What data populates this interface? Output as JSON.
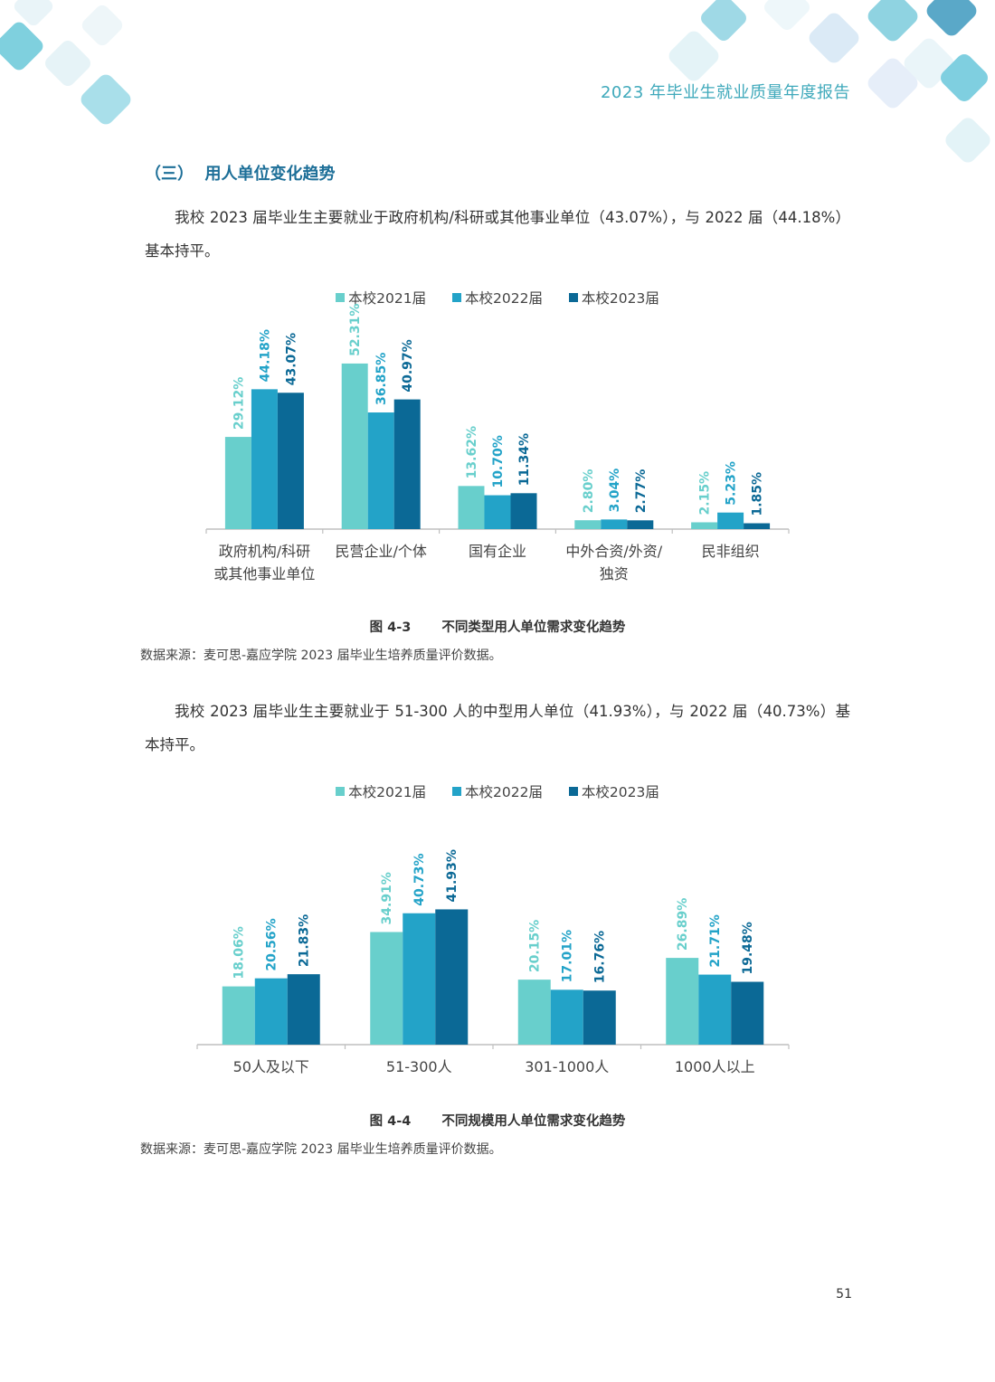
{
  "header": {
    "running_title": "2023 年毕业生就业质量年度报告"
  },
  "section": {
    "title": "（三）  用人单位变化趋势"
  },
  "paragraphs": [
    "我校 2023 届毕业生主要就业于政府机构/科研或其他事业单位（43.07%），与 2022 届（44.18%）基本持平。",
    "我校 2023 届毕业生主要就业于 51-300 人的中型用人单位（41.93%），与 2022 届（40.73%）基本持平。"
  ],
  "colors": {
    "s2021": "#68cfcc",
    "s2022": "#23a3c8",
    "s2023": "#0b6996",
    "accent": "#1d6f98"
  },
  "chart_data": [
    {
      "type": "bar",
      "categories": [
        "政府机构/科研\n或其他事业单位",
        "民营企业/个体",
        "国有企业",
        "中外合资/外资/\n独资",
        "民非组织"
      ],
      "series": [
        {
          "name": "本校2021届",
          "values": [
            29.12,
            52.31,
            13.62,
            2.8,
            2.15
          ]
        },
        {
          "name": "本校2022届",
          "values": [
            44.18,
            36.85,
            10.7,
            3.04,
            5.23
          ]
        },
        {
          "name": "本校2023届",
          "values": [
            43.07,
            40.97,
            11.34,
            2.77,
            1.85
          ]
        }
      ],
      "ylim": [
        0,
        60
      ],
      "legend": "top"
    },
    {
      "type": "bar",
      "categories": [
        "50人及以下",
        "51-300人",
        "301-1000人",
        "1000人以上"
      ],
      "series": [
        {
          "name": "本校2021届",
          "values": [
            18.06,
            34.91,
            20.15,
            26.89
          ]
        },
        {
          "name": "本校2022届",
          "values": [
            20.56,
            40.73,
            17.01,
            21.71
          ]
        },
        {
          "name": "本校2023届",
          "values": [
            21.83,
            41.93,
            16.76,
            19.48
          ]
        }
      ],
      "ylim": [
        0,
        60
      ],
      "legend": "top"
    }
  ],
  "captions": [
    {
      "number": "图 4-3",
      "title": "不同类型用人单位需求变化趋势"
    },
    {
      "number": "图 4-4",
      "title": "不同规模用人单位需求变化趋势"
    }
  ],
  "source_note": "数据来源：麦可思-嘉应学院 2023 届毕业生培养质量评价数据。",
  "page_number": "51"
}
